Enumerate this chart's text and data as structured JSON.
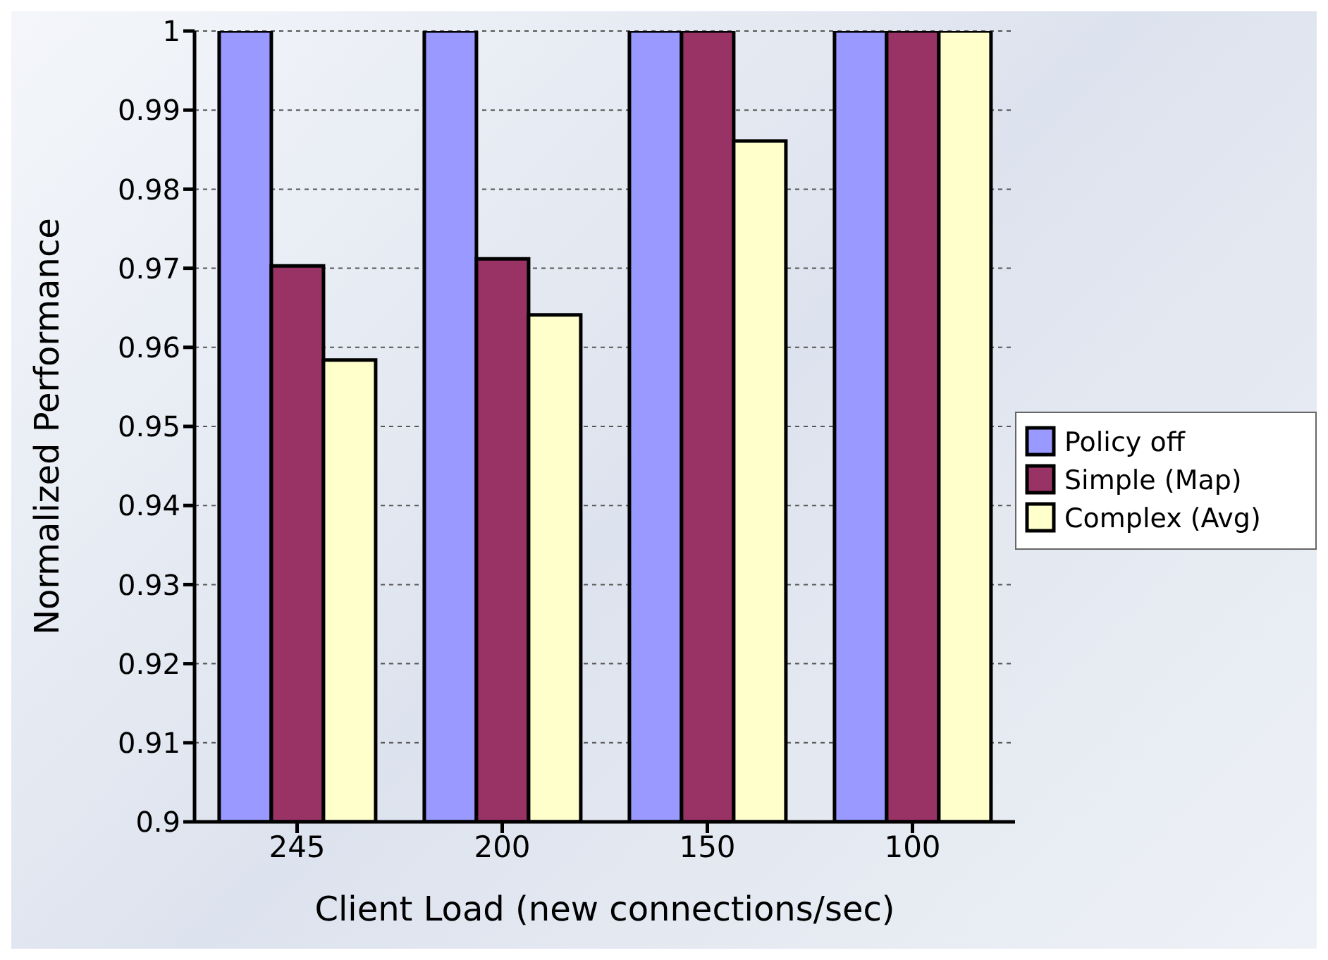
{
  "chart_data": {
    "type": "bar",
    "xlabel": "Client Load (new connections/sec)",
    "ylabel": "Normalized Performance",
    "categories": [
      "245",
      "200",
      "150",
      "100"
    ],
    "series": [
      {
        "name": "Policy off",
        "color": "#9999ff",
        "values": [
          1,
          1,
          1,
          1
        ]
      },
      {
        "name": "Simple (Map)",
        "color": "#993366",
        "values": [
          0.9703,
          0.9712,
          1,
          1
        ]
      },
      {
        "name": "Complex (Avg)",
        "color": "#ffffcc",
        "values": [
          0.9584,
          0.9641,
          0.9861,
          1
        ]
      }
    ],
    "ylim": [
      0.9,
      1
    ],
    "yticks": [
      0.9,
      0.91,
      0.92,
      0.93,
      0.94,
      0.95,
      0.96,
      0.97,
      0.98,
      0.99,
      1
    ],
    "grid": "y",
    "legend": "right"
  }
}
